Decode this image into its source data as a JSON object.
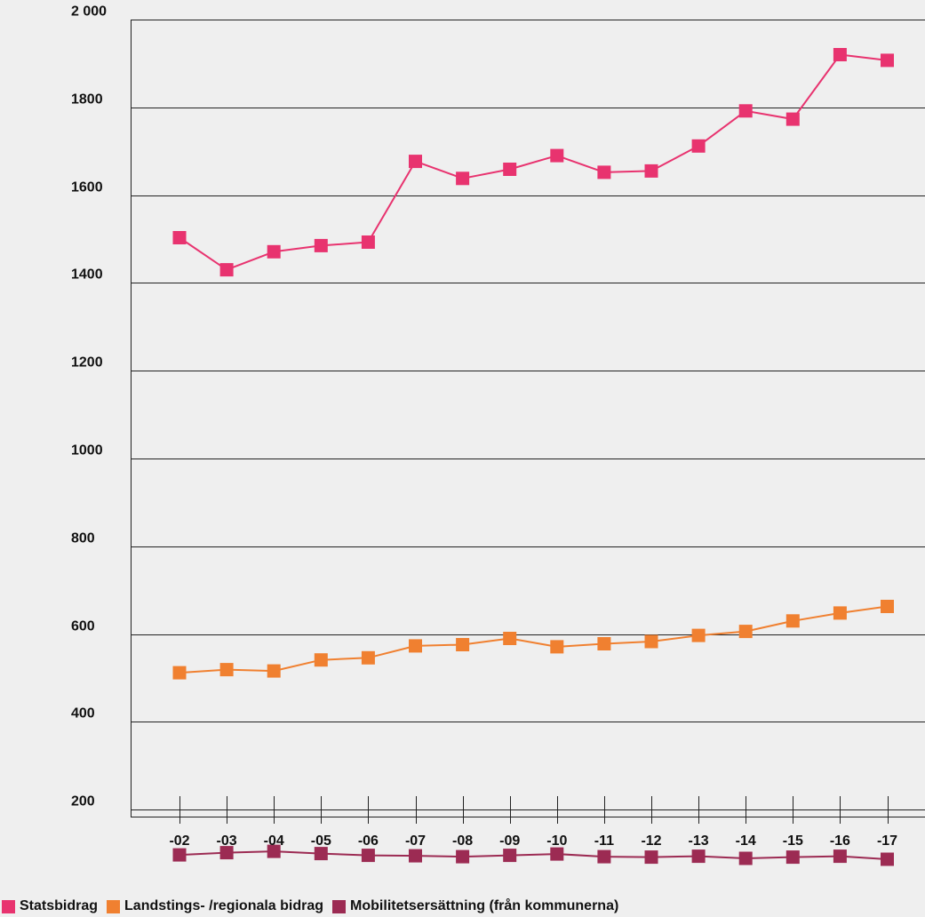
{
  "chart_data": {
    "type": "line",
    "title": "",
    "xlabel": "",
    "ylabel": "",
    "categories": [
      "-02",
      "-03",
      "-04",
      "-05",
      "-06",
      "-07",
      "-08",
      "-09",
      "-10",
      "-11",
      "-12",
      "-13",
      "-14",
      "-15",
      "-16",
      "-17"
    ],
    "ylim": [
      0,
      2000
    ],
    "yticks": [
      200,
      400,
      600,
      800,
      1000,
      1200,
      1400,
      1600,
      1800,
      2000
    ],
    "ytick_labels": [
      "200",
      "400",
      "600",
      "800",
      "1000",
      "1200",
      "1400",
      "1600",
      "1800",
      "2 000"
    ],
    "grid": "horizontal",
    "legend_position": "bottom",
    "series": [
      {
        "name": "Statsbidrag",
        "color": "#e8336f",
        "values": [
          1503,
          1430,
          1471,
          1485,
          1493,
          1677,
          1638,
          1659,
          1690,
          1652,
          1655,
          1712,
          1792,
          1773,
          1920,
          1907
        ]
      },
      {
        "name": "Landstings- /regionala bidrag",
        "color": "#f08030",
        "values": [
          512,
          519,
          516,
          541,
          546,
          573,
          576,
          590,
          571,
          578,
          583,
          597,
          606,
          630,
          648,
          663
        ]
      },
      {
        "name": "Mobilitetsersättning (från kommunerna)",
        "color": "#9c2b53",
        "values": [
          97,
          102,
          105,
          100,
          96,
          95,
          93,
          96,
          99,
          93,
          92,
          94,
          89,
          92,
          94,
          87
        ]
      }
    ]
  }
}
